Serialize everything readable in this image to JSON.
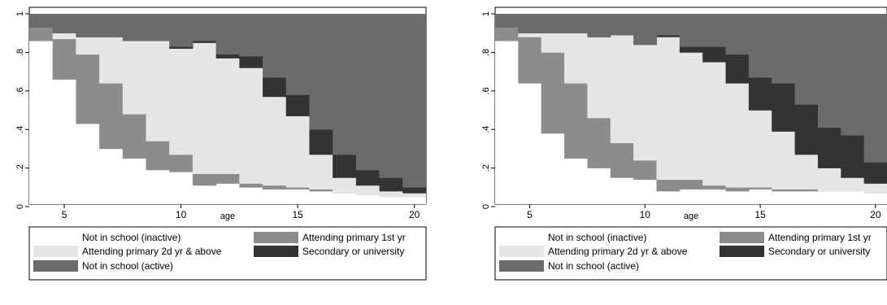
{
  "chart_data": [
    {
      "type": "area",
      "stacked": true,
      "step": true,
      "xlabel": "age",
      "ylabel": "",
      "xlim": [
        3.5,
        20.5
      ],
      "ylim": [
        0,
        1
      ],
      "x_ticks": [
        "5",
        "10",
        "15",
        "20"
      ],
      "y_ticks": [
        "0",
        ".2",
        ".4",
        ".6",
        ".8",
        "1"
      ],
      "x": [
        4,
        5,
        6,
        7,
        8,
        9,
        10,
        11,
        12,
        13,
        14,
        15,
        16,
        17,
        18,
        19,
        20
      ],
      "legend_position": "bottom",
      "series": [
        {
          "name": "Not in school (inactive)",
          "color": "#ffffff",
          "values": [
            0.86,
            0.66,
            0.43,
            0.3,
            0.25,
            0.19,
            0.18,
            0.11,
            0.12,
            0.1,
            0.09,
            0.09,
            0.08,
            0.07,
            0.06,
            0.05,
            0.05
          ]
        },
        {
          "name": "Attending primary 1st yr",
          "color": "#8c8c8c",
          "values": [
            0.07,
            0.21,
            0.36,
            0.34,
            0.23,
            0.15,
            0.09,
            0.06,
            0.05,
            0.02,
            0.02,
            0.01,
            0.01,
            0.0,
            0.0,
            0.0,
            0.0
          ]
        },
        {
          "name": "Attending primary 2d yr & above",
          "color": "#e6e6e6",
          "values": [
            0.0,
            0.03,
            0.09,
            0.24,
            0.38,
            0.52,
            0.55,
            0.68,
            0.6,
            0.6,
            0.46,
            0.37,
            0.18,
            0.08,
            0.05,
            0.03,
            0.02
          ]
        },
        {
          "name": "Secondary or university",
          "color": "#333333",
          "values": [
            0.0,
            0.0,
            0.0,
            0.0,
            0.0,
            0.0,
            0.01,
            0.01,
            0.02,
            0.06,
            0.1,
            0.11,
            0.13,
            0.12,
            0.08,
            0.07,
            0.03
          ]
        },
        {
          "name": "Not in school (active)",
          "color": "#6b6b6b",
          "values": [
            0.07,
            0.1,
            0.12,
            0.12,
            0.14,
            0.14,
            0.17,
            0.14,
            0.21,
            0.22,
            0.33,
            0.42,
            0.6,
            0.73,
            0.81,
            0.85,
            0.9
          ]
        }
      ]
    },
    {
      "type": "area",
      "stacked": true,
      "step": true,
      "xlabel": "age",
      "ylabel": "",
      "xlim": [
        3.5,
        20.5
      ],
      "ylim": [
        0,
        1
      ],
      "x_ticks": [
        "5",
        "10",
        "15",
        "20"
      ],
      "y_ticks": [
        "0",
        ".2",
        ".4",
        ".6",
        ".8",
        "1"
      ],
      "x": [
        4,
        5,
        6,
        7,
        8,
        9,
        10,
        11,
        12,
        13,
        14,
        15,
        16,
        17,
        18,
        19,
        20
      ],
      "legend_position": "bottom",
      "series": [
        {
          "name": "Not in school (inactive)",
          "color": "#ffffff",
          "values": [
            0.86,
            0.64,
            0.38,
            0.25,
            0.2,
            0.15,
            0.14,
            0.08,
            0.09,
            0.09,
            0.08,
            0.09,
            0.08,
            0.08,
            0.08,
            0.08,
            0.07
          ]
        },
        {
          "name": "Attending primary 1st yr",
          "color": "#8c8c8c",
          "values": [
            0.07,
            0.24,
            0.42,
            0.39,
            0.26,
            0.18,
            0.1,
            0.06,
            0.05,
            0.02,
            0.02,
            0.01,
            0.01,
            0.01,
            0.0,
            0.0,
            0.0
          ]
        },
        {
          "name": "Attending primary 2d yr & above",
          "color": "#e6e6e6",
          "values": [
            0.0,
            0.02,
            0.1,
            0.26,
            0.42,
            0.56,
            0.6,
            0.74,
            0.66,
            0.64,
            0.54,
            0.4,
            0.3,
            0.18,
            0.12,
            0.07,
            0.05
          ]
        },
        {
          "name": "Secondary or university",
          "color": "#333333",
          "values": [
            0.0,
            0.0,
            0.0,
            0.0,
            0.0,
            0.0,
            0.0,
            0.01,
            0.03,
            0.08,
            0.15,
            0.17,
            0.25,
            0.26,
            0.21,
            0.22,
            0.11
          ]
        },
        {
          "name": "Not in school (active)",
          "color": "#6b6b6b",
          "values": [
            0.07,
            0.1,
            0.1,
            0.1,
            0.12,
            0.11,
            0.16,
            0.11,
            0.17,
            0.17,
            0.21,
            0.33,
            0.36,
            0.47,
            0.59,
            0.63,
            0.77
          ]
        }
      ]
    }
  ]
}
